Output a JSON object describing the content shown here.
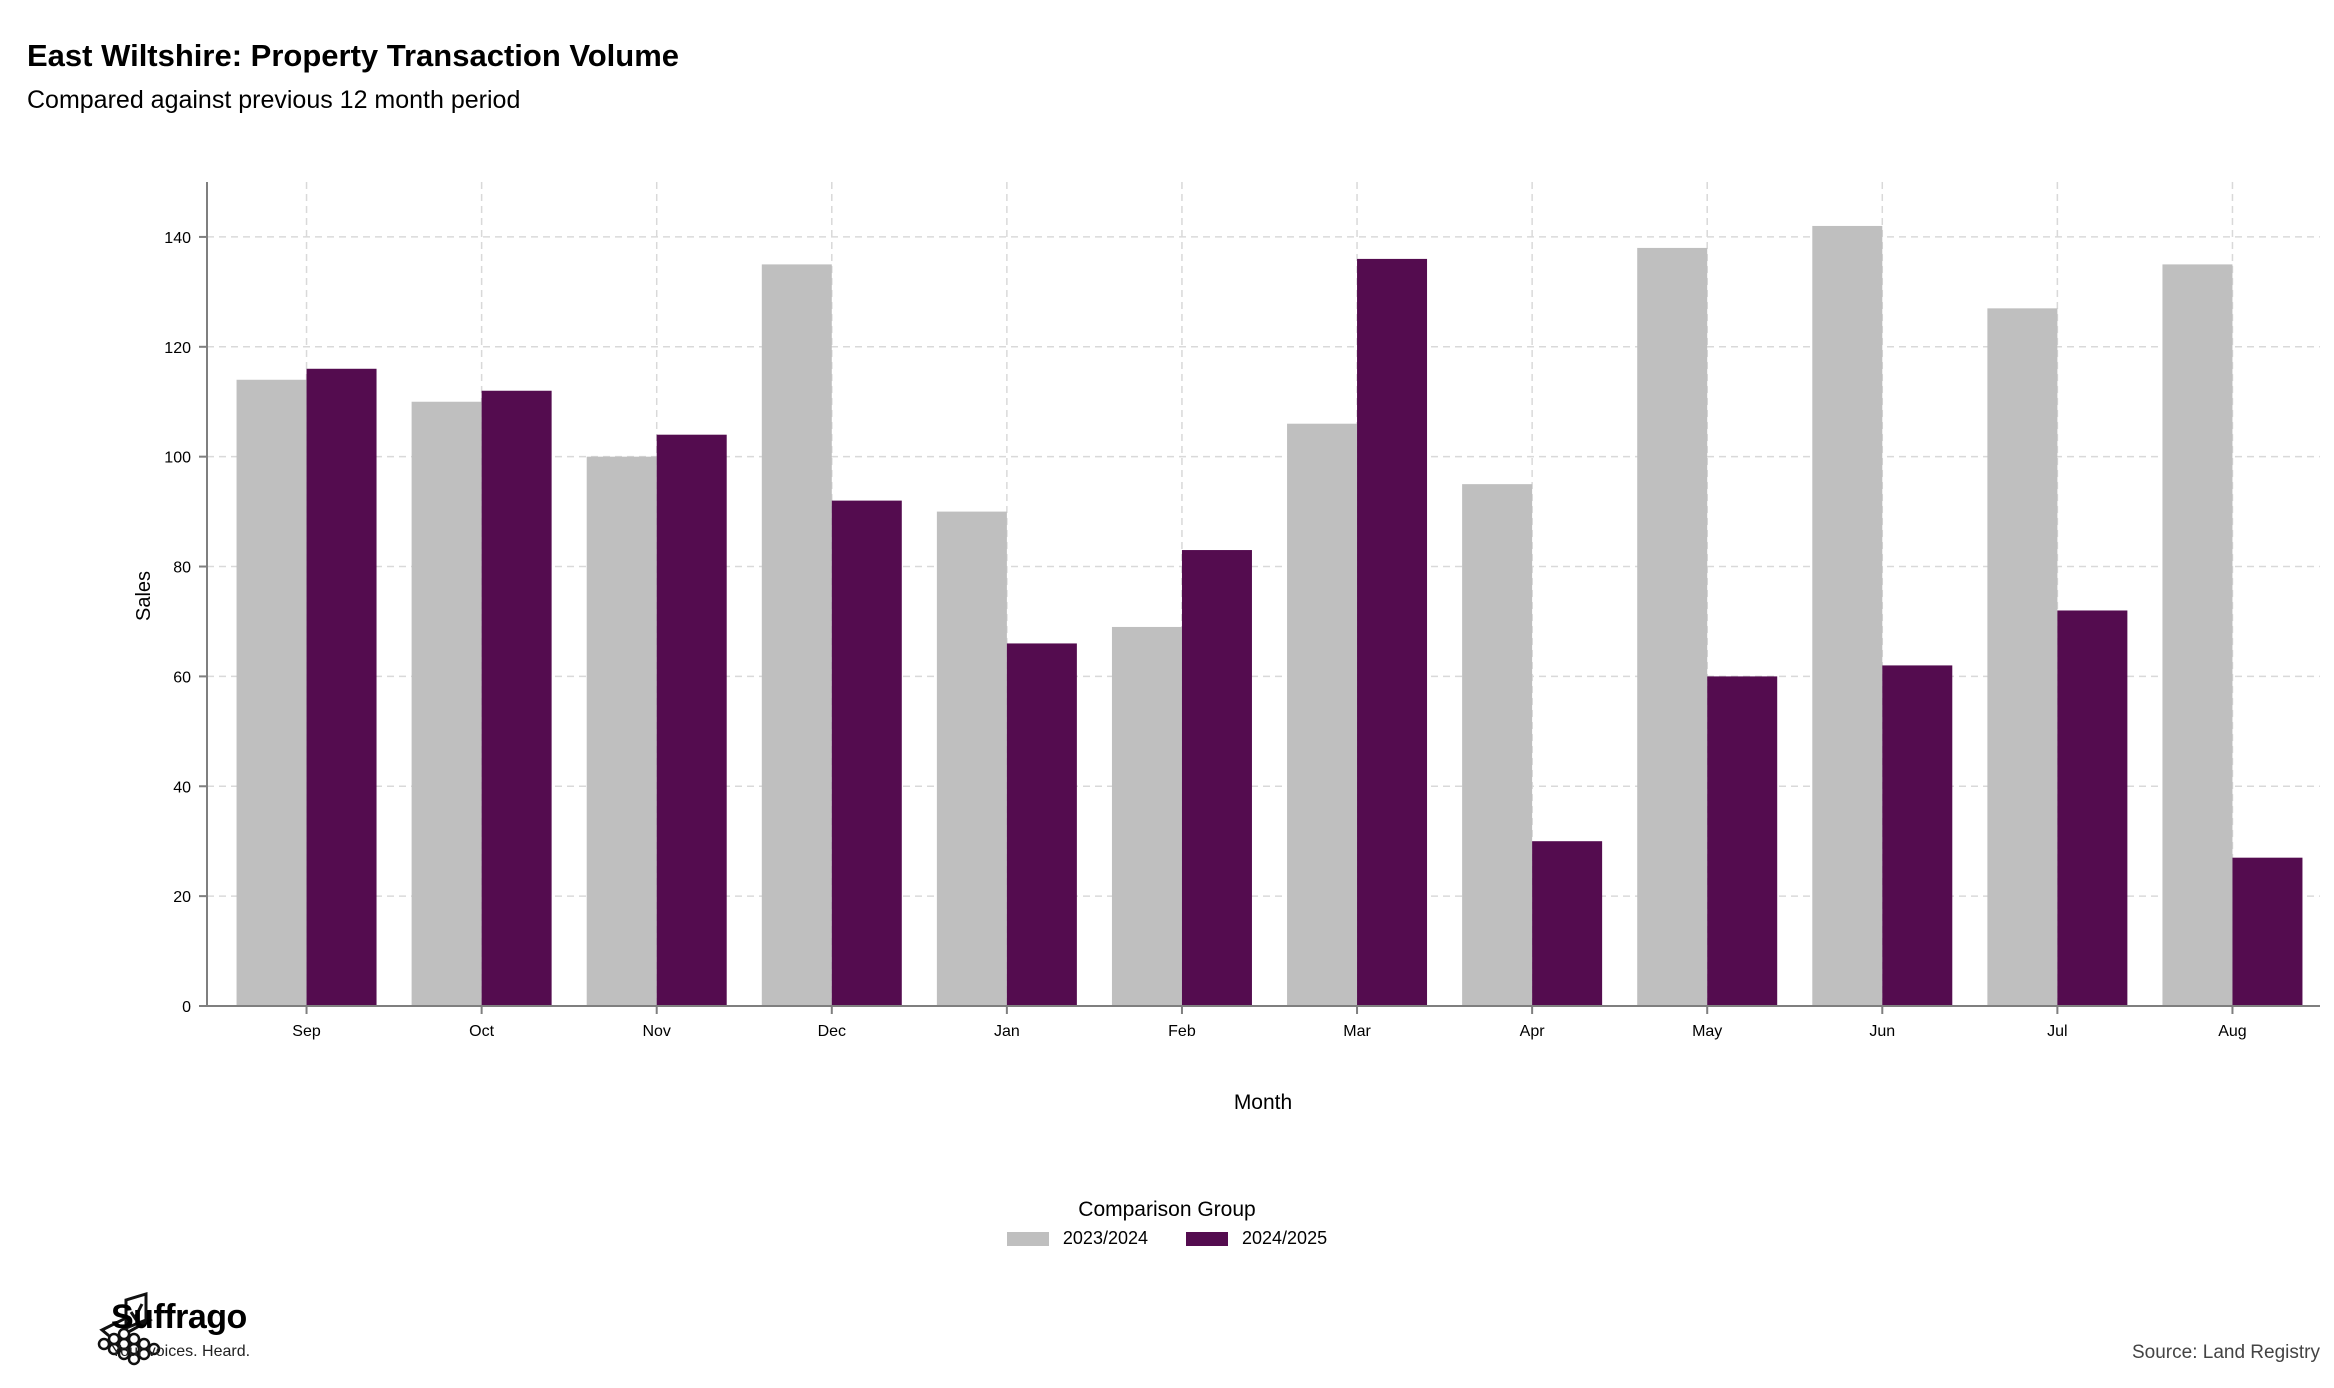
{
  "chart_data": {
    "type": "bar",
    "title": "East Wiltshire: Property Transaction Volume",
    "subtitle": "Compared against previous 12 month period",
    "xlabel": "Month",
    "ylabel": "Sales",
    "categories": [
      "Sep",
      "Oct",
      "Nov",
      "Dec",
      "Jan",
      "Feb",
      "Mar",
      "Apr",
      "May",
      "Jun",
      "Jul",
      "Aug"
    ],
    "series": [
      {
        "name": "2023/2024",
        "color": "#bfbfbf",
        "values": [
          114,
          110,
          100,
          135,
          90,
          69,
          106,
          95,
          138,
          142,
          127,
          135
        ]
      },
      {
        "name": "2024/2025",
        "color": "#540c4f",
        "values": [
          116,
          112,
          104,
          92,
          66,
          83,
          136,
          30,
          60,
          62,
          72,
          27
        ]
      }
    ],
    "ylim": [
      0,
      150
    ],
    "yticks": [
      0,
      20,
      40,
      60,
      80,
      100,
      120,
      140
    ],
    "grid": true,
    "legend": {
      "title": "Comparison Group",
      "position": "bottom"
    }
  },
  "brand": {
    "name": "Suffrago",
    "tagline": "Your voices. Heard."
  },
  "source": "Source: Land Registry"
}
